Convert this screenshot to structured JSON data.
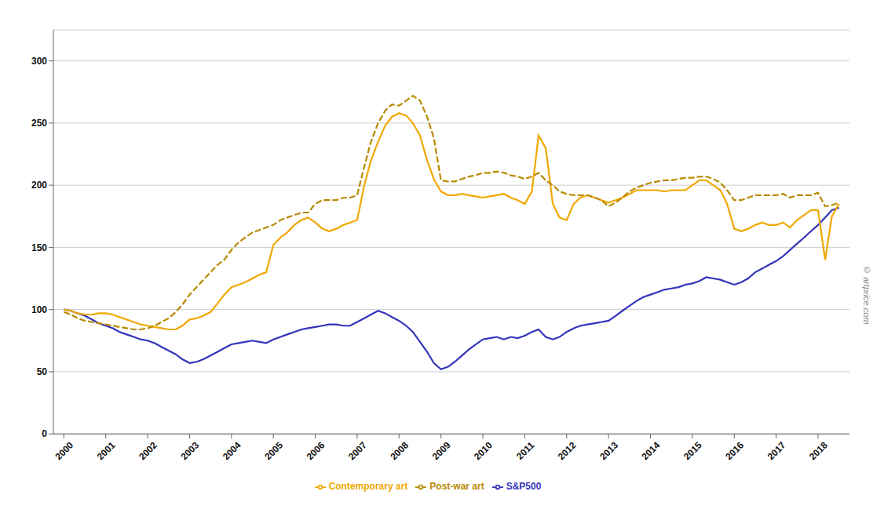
{
  "chart_data": {
    "type": "line",
    "x": [
      2000.0,
      2000.17,
      2000.33,
      2000.5,
      2000.67,
      2000.83,
      2001.0,
      2001.17,
      2001.33,
      2001.5,
      2001.67,
      2001.83,
      2002.0,
      2002.17,
      2002.33,
      2002.5,
      2002.67,
      2002.83,
      2003.0,
      2003.17,
      2003.33,
      2003.5,
      2003.67,
      2003.83,
      2004.0,
      2004.17,
      2004.33,
      2004.5,
      2004.67,
      2004.83,
      2005.0,
      2005.17,
      2005.33,
      2005.5,
      2005.67,
      2005.83,
      2006.0,
      2006.17,
      2006.33,
      2006.5,
      2006.67,
      2006.83,
      2007.0,
      2007.17,
      2007.33,
      2007.5,
      2007.67,
      2007.83,
      2008.0,
      2008.17,
      2008.33,
      2008.5,
      2008.67,
      2008.83,
      2009.0,
      2009.17,
      2009.33,
      2009.5,
      2009.67,
      2009.83,
      2010.0,
      2010.17,
      2010.33,
      2010.5,
      2010.67,
      2010.83,
      2011.0,
      2011.17,
      2011.33,
      2011.5,
      2011.67,
      2011.83,
      2012.0,
      2012.17,
      2012.33,
      2012.5,
      2012.67,
      2012.83,
      2013.0,
      2013.17,
      2013.33,
      2013.5,
      2013.67,
      2013.83,
      2014.0,
      2014.17,
      2014.33,
      2014.5,
      2014.67,
      2014.83,
      2015.0,
      2015.17,
      2015.33,
      2015.5,
      2015.67,
      2015.83,
      2016.0,
      2016.17,
      2016.33,
      2016.5,
      2016.67,
      2016.83,
      2017.0,
      2017.17,
      2017.33,
      2017.5,
      2017.67,
      2017.83,
      2018.0,
      2018.17,
      2018.33,
      2018.5
    ],
    "series": [
      {
        "name": "S&P500",
        "color": "#3333bb",
        "line_style": "solid",
        "values": [
          100,
          99,
          97,
          95,
          92,
          89,
          87,
          85,
          82,
          80,
          78,
          76,
          75,
          73,
          70,
          67,
          64,
          60,
          57,
          58,
          60,
          63,
          66,
          69,
          72,
          73,
          74,
          75,
          74,
          73,
          76,
          78,
          80,
          82,
          84,
          85,
          86,
          87,
          88,
          88,
          87,
          87,
          90,
          93,
          96,
          99,
          97,
          94,
          91,
          87,
          82,
          74,
          66,
          57,
          52,
          54,
          58,
          63,
          68,
          72,
          76,
          77,
          78,
          76,
          78,
          77,
          79,
          82,
          84,
          78,
          76,
          78,
          82,
          85,
          87,
          88,
          89,
          90,
          91,
          95,
          99,
          103,
          107,
          110,
          112,
          114,
          116,
          117,
          118,
          120,
          121,
          123,
          126,
          125,
          124,
          122,
          120,
          122,
          125,
          130,
          133,
          136,
          139,
          143,
          148,
          153,
          158,
          163,
          168,
          174,
          180,
          182
        ]
      },
      {
        "name": "Contemporary art",
        "color": "#f0a800",
        "line_style": "solid",
        "values": [
          100,
          99,
          97,
          96,
          96,
          97,
          97,
          96,
          94,
          92,
          90,
          88,
          87,
          86,
          85,
          84,
          84,
          87,
          92,
          93,
          95,
          98,
          105,
          112,
          118,
          120,
          122,
          125,
          128,
          130,
          152,
          158,
          162,
          168,
          172,
          174,
          170,
          165,
          163,
          165,
          168,
          170,
          172,
          200,
          220,
          235,
          248,
          255,
          258,
          256,
          250,
          240,
          220,
          205,
          195,
          192,
          192,
          193,
          192,
          191,
          190,
          191,
          192,
          193,
          190,
          188,
          185,
          195,
          240,
          230,
          185,
          174,
          172,
          185,
          190,
          192,
          190,
          188,
          186,
          188,
          190,
          193,
          196,
          196,
          196,
          196,
          195,
          196,
          196,
          196,
          200,
          204,
          204,
          200,
          196,
          185,
          165,
          163,
          165,
          168,
          170,
          168,
          168,
          170,
          166,
          172,
          176,
          180,
          180,
          140,
          175,
          185
        ]
      },
      {
        "name": "Post-war art",
        "color": "#b88a00",
        "line_style": "dashed",
        "values": [
          98,
          96,
          93,
          91,
          90,
          89,
          88,
          87,
          86,
          85,
          84,
          84,
          85,
          87,
          90,
          93,
          98,
          104,
          112,
          118,
          124,
          130,
          136,
          140,
          148,
          154,
          158,
          162,
          164,
          166,
          168,
          172,
          174,
          176,
          178,
          178,
          185,
          188,
          188,
          188,
          190,
          190,
          192,
          215,
          235,
          250,
          260,
          265,
          264,
          268,
          272,
          268,
          255,
          238,
          204,
          203,
          203,
          205,
          207,
          208,
          210,
          210,
          211,
          210,
          208,
          207,
          205,
          207,
          210,
          204,
          200,
          195,
          193,
          192,
          192,
          192,
          190,
          188,
          183,
          186,
          190,
          195,
          198,
          200,
          202,
          203,
          204,
          204,
          205,
          206,
          206,
          207,
          207,
          205,
          202,
          196,
          188,
          188,
          190,
          192,
          192,
          192,
          192,
          193,
          190,
          192,
          192,
          192,
          194,
          183,
          184,
          186
        ]
      }
    ],
    "xlim": [
      1999.75,
      2018.75
    ],
    "xticks": [
      2000,
      2001,
      2002,
      2003,
      2004,
      2005,
      2006,
      2007,
      2008,
      2009,
      2010,
      2011,
      2012,
      2013,
      2014,
      2015,
      2016,
      2017,
      2018
    ],
    "ylim": [
      0,
      325
    ],
    "yticks": [
      0,
      50,
      100,
      150,
      200,
      250,
      300
    ],
    "grid": true,
    "legend": "bottom",
    "annotations": [
      "© artprice.com"
    ]
  }
}
